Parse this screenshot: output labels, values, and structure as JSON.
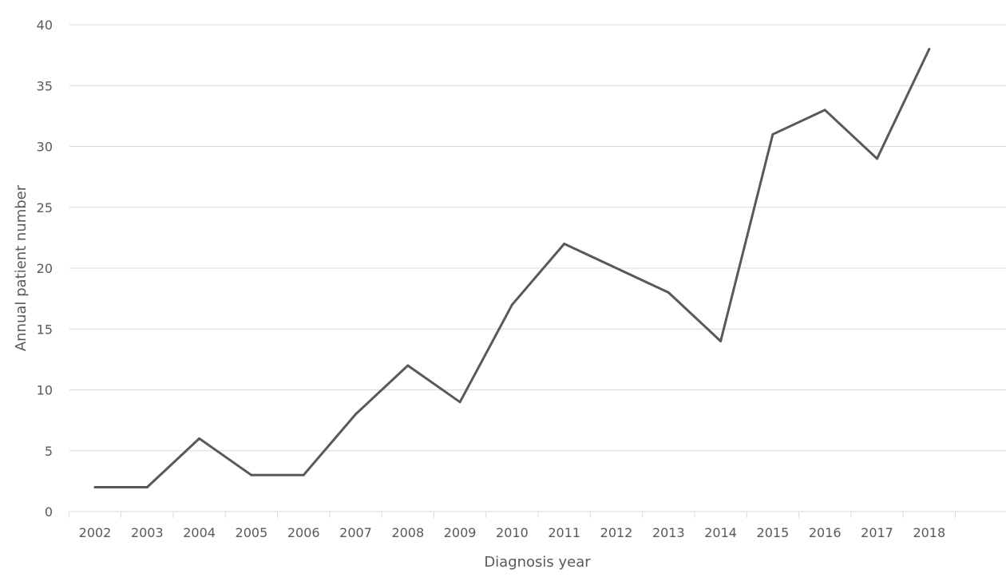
{
  "chart_data": {
    "type": "line",
    "x": [
      "2002",
      "2003",
      "2004",
      "2005",
      "2006",
      "2007",
      "2008",
      "2009",
      "2010",
      "2011",
      "2012",
      "2013",
      "2014",
      "2015",
      "2016",
      "2017",
      "2018"
    ],
    "series": [
      {
        "values": [
          2,
          2,
          6,
          3,
          3,
          8,
          12,
          9,
          17,
          22,
          20,
          18,
          14,
          31,
          33,
          29,
          38
        ]
      }
    ],
    "xlabel": "Diagnosis year",
    "ylabel": "Annual patient number",
    "ylim": [
      0,
      40
    ],
    "yticks": [
      0,
      5,
      10,
      15,
      20,
      25,
      30,
      35,
      40
    ],
    "grid": "horizontal",
    "legend": "none",
    "line_color": "#595959",
    "grid_color": "#d9d9d9"
  }
}
